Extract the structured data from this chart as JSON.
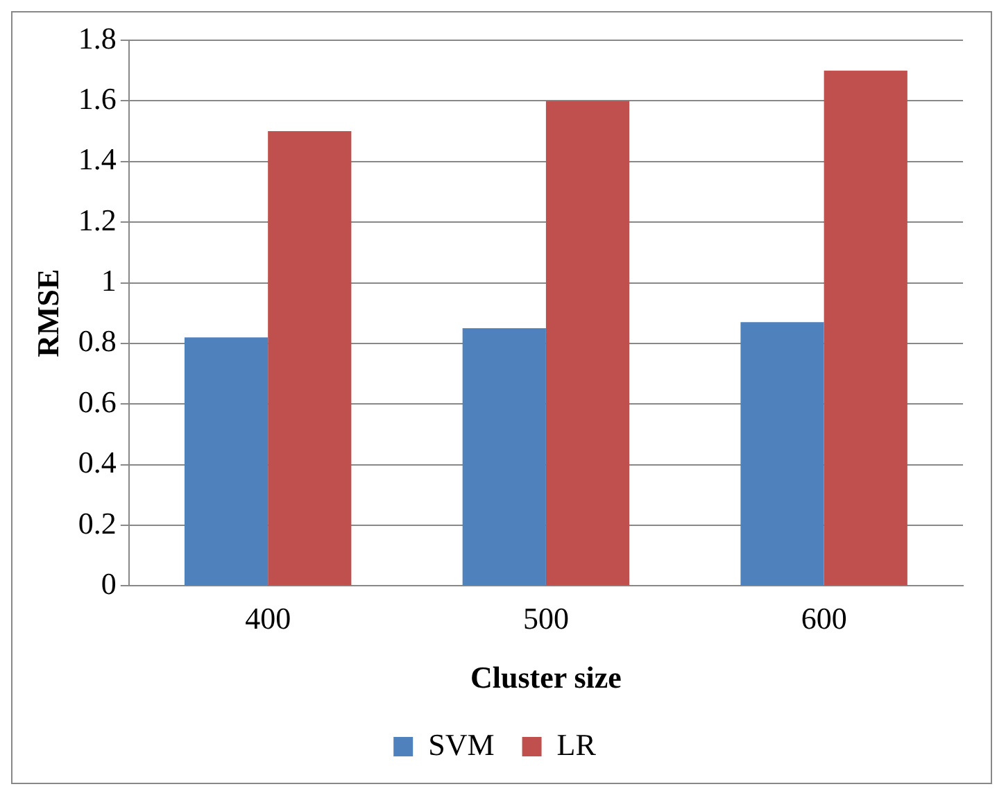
{
  "chart_data": {
    "type": "bar",
    "xlabel": "Cluster size",
    "ylabel": "RMSE",
    "categories": [
      "400",
      "500",
      "600"
    ],
    "series": [
      {
        "name": "SVM",
        "color": "#4f81bd",
        "values": [
          0.82,
          0.85,
          0.87
        ]
      },
      {
        "name": "LR",
        "color": "#c0504d",
        "values": [
          1.5,
          1.6,
          1.7
        ]
      }
    ],
    "ylim": [
      0,
      1.8
    ],
    "yticks": [
      0,
      0.2,
      0.4,
      0.6,
      0.8,
      1,
      1.2,
      1.4,
      1.6,
      1.8
    ],
    "grid": "y",
    "legend": "bottom"
  }
}
